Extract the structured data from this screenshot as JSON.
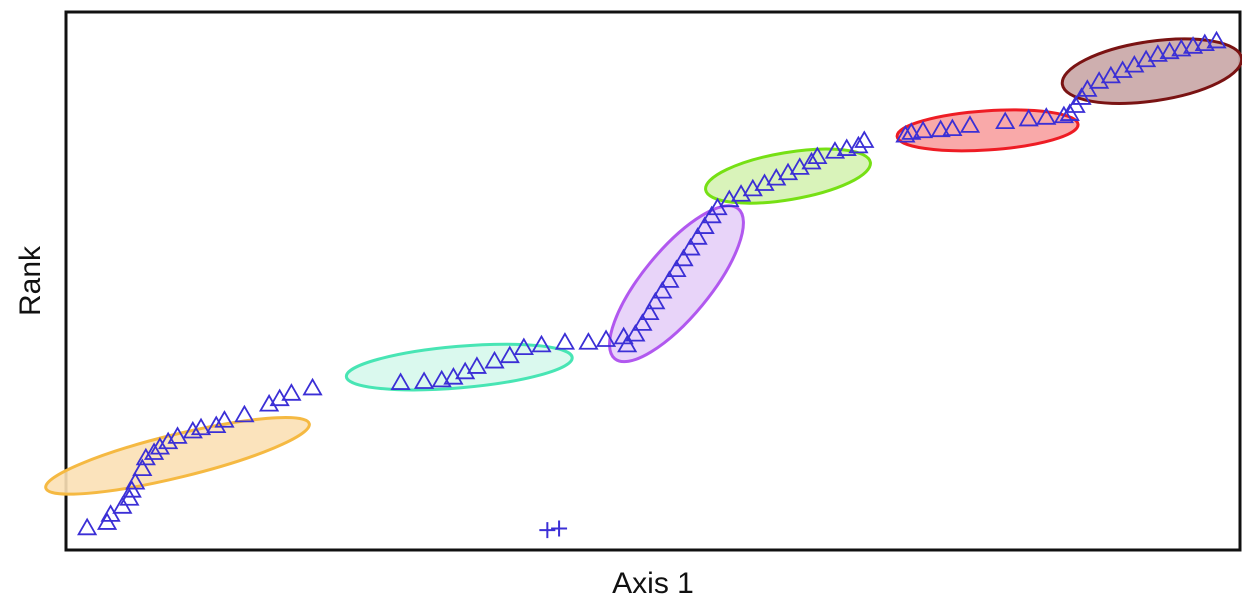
{
  "chart_data": {
    "type": "scatter",
    "title": "",
    "xlabel": "Axis 1",
    "ylabel": "Rank",
    "xlim": [
      0,
      100
    ],
    "ylim": [
      0,
      100
    ],
    "grid": false,
    "legend": "none",
    "marker_color": "#3b2fd6",
    "clusters": [
      {
        "color": "#f5b942",
        "fill": "#fbe0b5",
        "center": [
          9.5,
          17.5
        ],
        "semi_major": 12.8,
        "semi_minor": 3.6,
        "angle_deg": 30,
        "marker": "triangle",
        "points": [
          [
            1.8,
            4
          ],
          [
            3.5,
            5
          ],
          [
            3.8,
            6.5
          ],
          [
            4.8,
            8
          ],
          [
            5.4,
            9.5
          ],
          [
            5.6,
            11
          ],
          [
            5.9,
            12.5
          ],
          [
            6.5,
            15
          ],
          [
            6.8,
            17
          ],
          [
            7.5,
            18
          ],
          [
            8,
            19
          ],
          [
            8.7,
            20
          ],
          [
            9.5,
            21
          ],
          [
            10.8,
            22
          ],
          [
            11.5,
            22.6
          ],
          [
            12.8,
            23
          ],
          [
            13.5,
            24
          ],
          [
            15.2,
            25
          ],
          [
            17.3,
            27
          ],
          [
            18.2,
            28
          ],
          [
            19.2,
            29
          ],
          [
            21,
            30
          ]
        ]
      },
      {
        "color": "#48e5b4",
        "fill": "#d6f8ec",
        "center": [
          33.5,
          34
        ],
        "semi_major": 9.8,
        "semi_minor": 3.8,
        "angle_deg": 12,
        "marker": "triangle",
        "points": [
          [
            28.5,
            31
          ],
          [
            30.5,
            31.2
          ],
          [
            32,
            31.5
          ],
          [
            33,
            32
          ],
          [
            34,
            33
          ],
          [
            35,
            34
          ],
          [
            36.5,
            35
          ],
          [
            37.8,
            36
          ],
          [
            39,
            37.5
          ],
          [
            40.5,
            38
          ],
          [
            42.5,
            38.5
          ],
          [
            44.5,
            38.5
          ],
          [
            46,
            39
          ],
          [
            47.5,
            39.5
          ]
        ]
      },
      {
        "color": "#b158ef",
        "fill": "#e6cff8",
        "center": [
          52,
          49.5
        ],
        "semi_major": 15.2,
        "semi_minor": 3.4,
        "angle_deg": 72,
        "marker": "triangle",
        "points": [
          [
            47.8,
            38
          ],
          [
            48.5,
            40
          ],
          [
            49.1,
            42
          ],
          [
            49.7,
            44
          ],
          [
            50.2,
            46
          ],
          [
            50.8,
            48
          ],
          [
            51.4,
            50
          ],
          [
            52,
            52
          ],
          [
            52.6,
            54
          ],
          [
            53.2,
            56
          ],
          [
            53.8,
            58
          ],
          [
            54.4,
            60
          ],
          [
            55,
            62
          ]
        ]
      },
      {
        "color": "#76e014",
        "fill": "#d5f2b2",
        "center": [
          61.5,
          69.5
        ],
        "semi_major": 7.6,
        "semi_minor": 4.1,
        "angle_deg": 27,
        "marker": "triangle",
        "points": [
          [
            55.5,
            63.5
          ],
          [
            56.5,
            65
          ],
          [
            57.5,
            66
          ],
          [
            58.5,
            67
          ],
          [
            59.5,
            68
          ],
          [
            60.5,
            69
          ],
          [
            61.5,
            70
          ],
          [
            62.5,
            71
          ],
          [
            63.5,
            72
          ],
          [
            64,
            73
          ],
          [
            65.5,
            74
          ],
          [
            66.5,
            74.5
          ],
          [
            67.5,
            75
          ],
          [
            68,
            76
          ]
        ]
      },
      {
        "color": "#ee1c24",
        "fill": "#f8a0a0",
        "center": [
          78.5,
          78
        ],
        "semi_major": 7.8,
        "semi_minor": 3.6,
        "angle_deg": 10,
        "marker": "triangle",
        "points": [
          [
            71.5,
            77
          ],
          [
            72,
            77.5
          ],
          [
            73,
            77.8
          ],
          [
            74.5,
            78
          ],
          [
            75.5,
            78.2
          ],
          [
            77,
            78.8
          ],
          [
            80,
            79.5
          ],
          [
            82,
            80
          ],
          [
            83.5,
            80.3
          ],
          [
            85,
            80.6
          ]
        ]
      },
      {
        "color": "#7a1313",
        "fill": "#c9a6a6",
        "center": [
          92.5,
          89
        ],
        "semi_major": 8.2,
        "semi_minor": 5.2,
        "angle_deg": 28,
        "marker": "triangle",
        "points": [
          [
            85.5,
            81
          ],
          [
            86,
            82.5
          ],
          [
            86.5,
            84
          ],
          [
            87,
            85.5
          ],
          [
            88,
            87
          ],
          [
            89,
            88
          ],
          [
            90,
            89
          ],
          [
            91,
            90
          ],
          [
            92,
            91
          ],
          [
            93,
            92
          ],
          [
            94,
            92.5
          ],
          [
            95,
            93
          ],
          [
            96,
            93.5
          ],
          [
            97,
            94
          ],
          [
            98,
            94.5
          ]
        ]
      },
      {
        "color": "none",
        "fill": "none",
        "marker": "plus",
        "points": [
          [
            41,
            3.7
          ],
          [
            42,
            4
          ]
        ]
      }
    ]
  }
}
